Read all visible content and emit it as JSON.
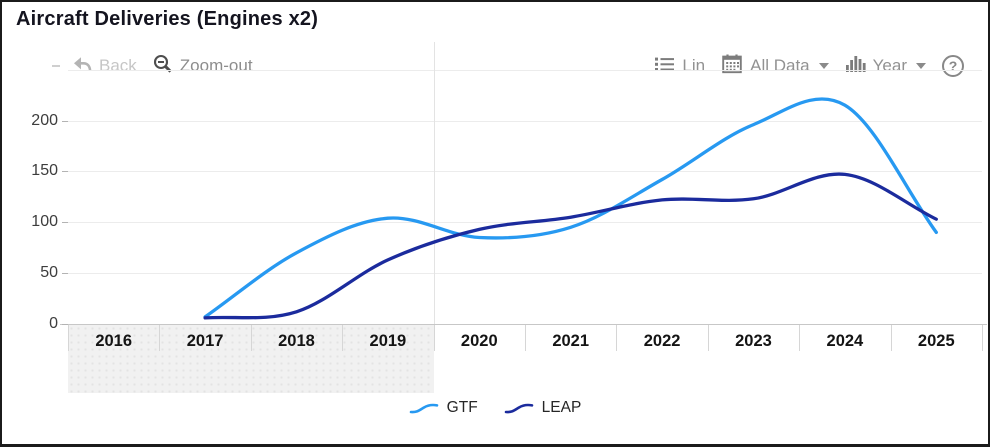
{
  "window": {
    "title": "Aircraft Deliveries (Engines x2)"
  },
  "toolbar": {
    "dash": "-",
    "back": {
      "label": "Back",
      "icon": "undo-arrow-icon",
      "disabled": true
    },
    "zoom_out": {
      "label": "Zoom-out",
      "icon": "magnifier-minus-icon"
    },
    "lin": {
      "label": "Lin",
      "icon": "list-icon"
    },
    "all_data": {
      "label": "All Data",
      "icon": "calendar-icon",
      "dropdown": true
    },
    "year": {
      "label": "Year",
      "icon": "bar-chart-icon",
      "dropdown": true
    },
    "help": {
      "label": "?",
      "icon": "question-circle-icon"
    }
  },
  "legend": [
    {
      "name": "GTF",
      "color": "#2799F1"
    },
    {
      "name": "LEAP",
      "color": "#1B2B9D"
    }
  ],
  "chart_data": {
    "type": "line",
    "title": "Aircraft Deliveries (Engines x2)",
    "smooth": true,
    "x": [
      2017,
      2018,
      2019,
      2020,
      2021,
      2022,
      2023,
      2024,
      2025
    ],
    "series": [
      {
        "name": "GTF",
        "color": "#2799F1",
        "values": [
          7,
          70,
          104,
          85,
          95,
          142,
          196,
          215,
          90
        ]
      },
      {
        "name": "LEAP",
        "color": "#1B2B9D",
        "values": [
          6,
          12,
          63,
          93,
          105,
          122,
          123,
          147,
          103
        ]
      }
    ],
    "x_axis_years": [
      2016,
      2017,
      2018,
      2019,
      2020,
      2021,
      2022,
      2023,
      2024,
      2025
    ],
    "y_ticks": [
      0,
      50,
      100,
      150,
      200
    ],
    "ylim": [
      0,
      250
    ],
    "grid": true,
    "legend_position": "bottom",
    "selected_range": {
      "from": 2016,
      "to": 2019
    }
  }
}
